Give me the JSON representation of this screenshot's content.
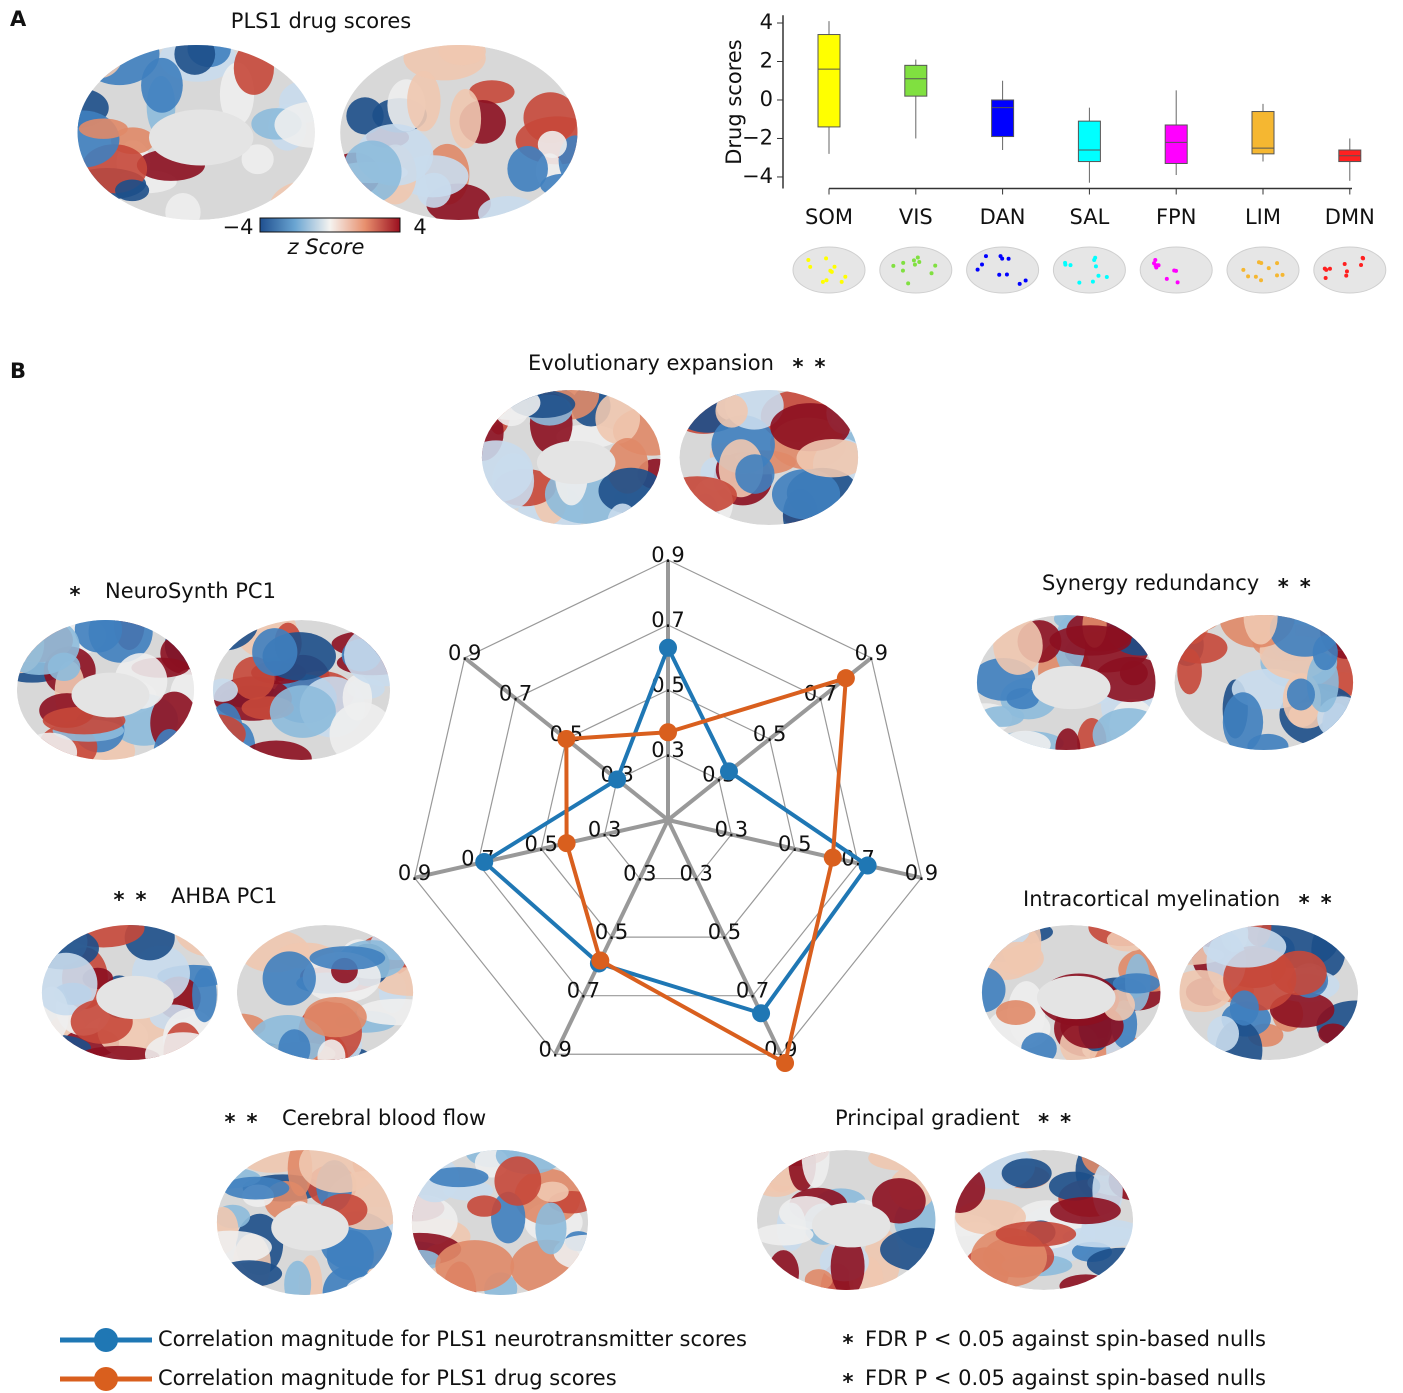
{
  "panels": [
    "A",
    "B"
  ],
  "brain_map": {
    "title": "PLS1 drug scores",
    "colorbar": {
      "lim": [
        -4,
        4
      ],
      "ticks": [
        {
          "value": -4,
          "label": "−4"
        },
        {
          "value": 4,
          "label": "4"
        }
      ],
      "label": "z Score"
    }
  },
  "chart_data": [
    {
      "type": "box",
      "ylabel": "Drug scores",
      "categories": [
        "SOM",
        "VIS",
        "DAN",
        "SAL",
        "FPN",
        "LIM",
        "DMN"
      ],
      "colors": [
        "#ffff00",
        "#80e040",
        "#0000ff",
        "#00ffff",
        "#ff00ff",
        "#f5b731",
        "#ff2020"
      ],
      "whisker_low": [
        -2.8,
        -2.0,
        -2.6,
        -4.3,
        -3.9,
        -3.2,
        -4.2
      ],
      "q1": [
        -1.4,
        0.2,
        -1.9,
        -3.2,
        -3.3,
        -2.8,
        -3.2
      ],
      "median": [
        1.6,
        1.1,
        -0.4,
        -2.6,
        -2.2,
        -2.5,
        -2.9
      ],
      "q3": [
        3.4,
        1.8,
        0.0,
        -1.1,
        -1.3,
        -0.6,
        -2.6
      ],
      "whisker_high": [
        4.1,
        2.1,
        1.0,
        -0.4,
        0.5,
        -0.2,
        -2.0
      ],
      "ylim": [
        -4.6,
        4.4
      ],
      "yticks": [
        {
          "value": -4,
          "label": "−4"
        },
        {
          "value": -2,
          "label": "−2"
        },
        0,
        2,
        4
      ]
    },
    {
      "type": "radar",
      "axes": [
        "Evolutionary expansion",
        "Synergy redundancy",
        "Intracortical myelination",
        "Principal gradient",
        "Cerebral blood flow",
        "AHBA PC1",
        "NeuroSynth PC1"
      ],
      "rlim": [
        0.1,
        0.9
      ],
      "rticks": [
        0.3,
        0.5,
        0.7,
        0.9
      ],
      "marker_symbol": "*",
      "significance_note": "FDR P < 0.05 against spin-based nulls",
      "series": [
        {
          "name": "Correlation magnitude for PLS1 neurotransmitter scores",
          "color": "#1f77b4",
          "values": [
            0.63,
            0.34,
            0.73,
            0.76,
            0.59,
            0.68,
            0.3
          ],
          "significant": [
            true,
            true,
            true,
            true,
            true,
            true,
            false
          ]
        },
        {
          "name": "Correlation magnitude for PLS1 drug scores",
          "color": "#d95f1e",
          "values": [
            0.37,
            0.8,
            0.62,
            0.93,
            0.58,
            0.42,
            0.5
          ],
          "significant": [
            true,
            true,
            true,
            true,
            true,
            true,
            true
          ]
        }
      ]
    }
  ]
}
